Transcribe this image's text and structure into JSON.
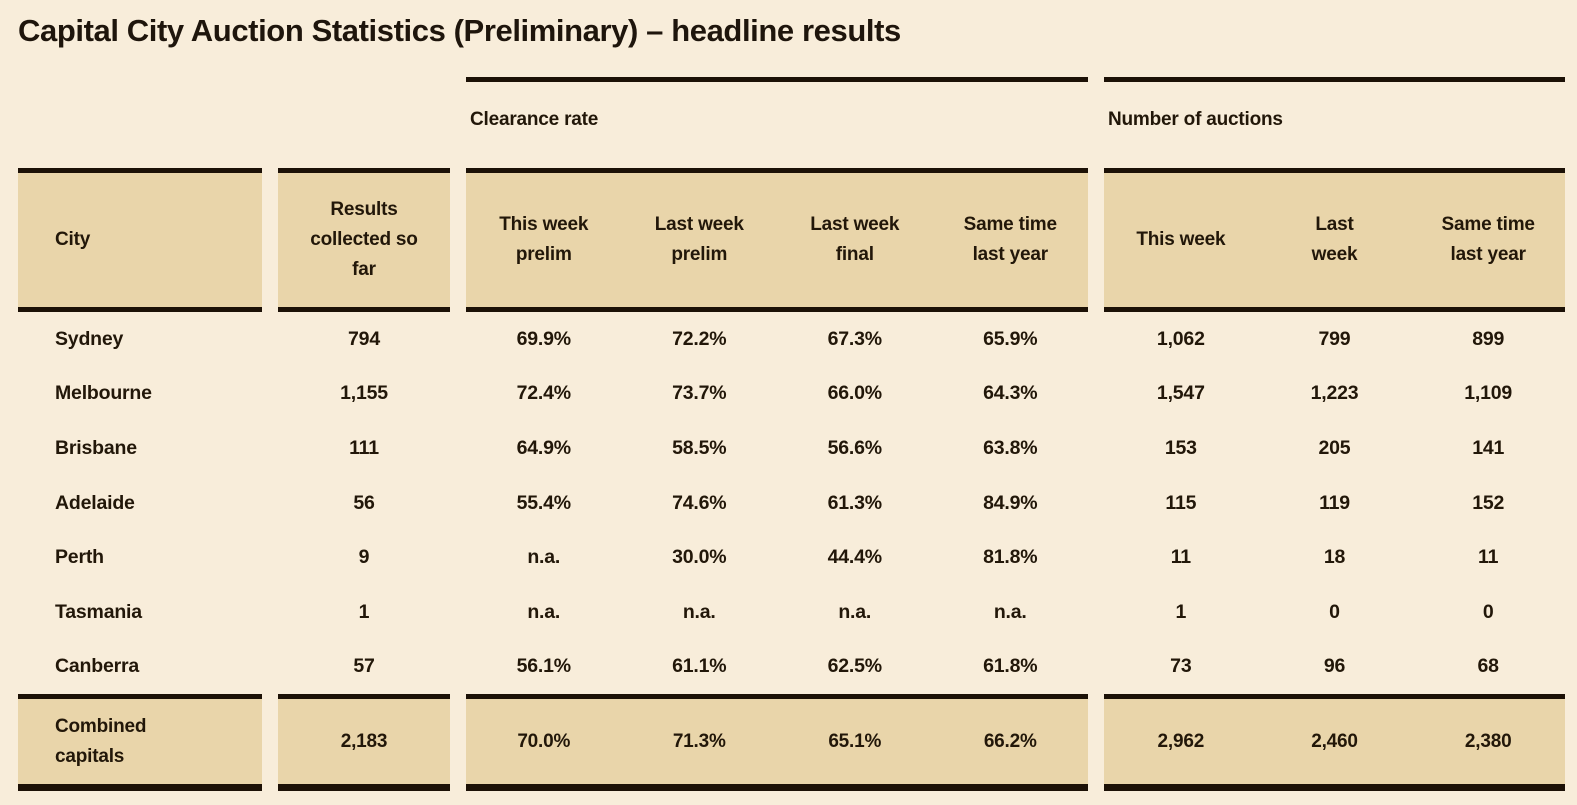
{
  "colors": {
    "background": "#f8edda",
    "band": "#e9d5aa",
    "ink": "#221709",
    "rule_line": "#1c1106"
  },
  "title": "Capital City Auction Statistics (Preliminary) – headline results",
  "chart_data": {
    "type": "table",
    "title": "Capital City Auction Statistics (Preliminary) – headline results",
    "column_groups": [
      {
        "label": "Clearance rate",
        "columns": [
          "This week prelim",
          "Last week prelim",
          "Last week final",
          "Same time last year"
        ]
      },
      {
        "label": "Number of auctions",
        "columns": [
          "This week",
          "Last week",
          "Same time last year"
        ]
      }
    ],
    "columns": [
      "City",
      "Results collected so far",
      "This week prelim",
      "Last week prelim",
      "Last week final",
      "Same time last year",
      "This week",
      "Last week",
      "Same time last year"
    ],
    "rows": [
      [
        "Sydney",
        "794",
        "69.9%",
        "72.2%",
        "67.3%",
        "65.9%",
        "1,062",
        "799",
        "899"
      ],
      [
        "Melbourne",
        "1,155",
        "72.4%",
        "73.7%",
        "66.0%",
        "64.3%",
        "1,547",
        "1,223",
        "1,109"
      ],
      [
        "Brisbane",
        "111",
        "64.9%",
        "58.5%",
        "56.6%",
        "63.8%",
        "153",
        "205",
        "141"
      ],
      [
        "Adelaide",
        "56",
        "55.4%",
        "74.6%",
        "61.3%",
        "84.9%",
        "115",
        "119",
        "152"
      ],
      [
        "Perth",
        "9",
        "n.a.",
        "30.0%",
        "44.4%",
        "81.8%",
        "11",
        "18",
        "11"
      ],
      [
        "Tasmania",
        "1",
        "n.a.",
        "n.a.",
        "n.a.",
        "n.a.",
        "1",
        "0",
        "0"
      ],
      [
        "Canberra",
        "57",
        "56.1%",
        "61.1%",
        "62.5%",
        "61.8%",
        "73",
        "96",
        "68"
      ]
    ],
    "totals": [
      "Combined capitals",
      "2,183",
      "70.0%",
      "71.3%",
      "65.1%",
      "66.2%",
      "2,962",
      "2,460",
      "2,380"
    ]
  }
}
